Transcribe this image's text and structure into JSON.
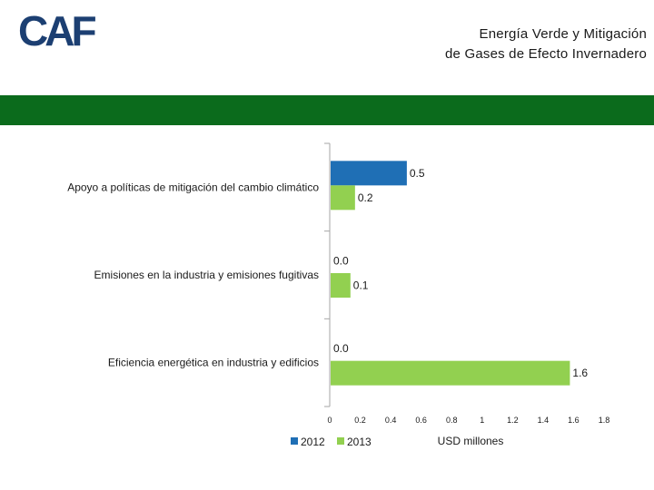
{
  "header": {
    "logo_text": "CAF",
    "title_line1": "Energía Verde y Mitigación",
    "title_line2": "de Gases de Efecto Invernadero",
    "band_color": "#0b6b1c"
  },
  "chart_data": {
    "type": "bar",
    "orientation": "horizontal",
    "categories": [
      "Apoyo a políticas de mitigación del cambio climático",
      "Emisiones en la industria y emisiones fugitivas",
      "Eficiencia energética en industria y edificios"
    ],
    "series": [
      {
        "name": "2012",
        "color": "#1f6fb5",
        "values": [
          0.5,
          0.0,
          0.0
        ],
        "labels": [
          "0.5",
          "0.0",
          "0.0"
        ]
      },
      {
        "name": "2013",
        "color": "#92d050",
        "values": [
          0.16,
          0.13,
          1.57
        ],
        "labels": [
          "0.2",
          "0.1",
          "1.6"
        ]
      }
    ],
    "xlabel": "USD millones",
    "xlim": [
      0,
      1.8
    ],
    "xticks": [
      0,
      0.2,
      0.4,
      0.6,
      0.8,
      1,
      1.2,
      1.4,
      1.6,
      1.8
    ],
    "xtick_labels": [
      "0",
      "0.2",
      "0.4",
      "0.6",
      "0.8",
      "1",
      "1.2",
      "1.4",
      "1.6",
      "1.8"
    ],
    "grid": false,
    "legend_position": "bottom-left"
  }
}
